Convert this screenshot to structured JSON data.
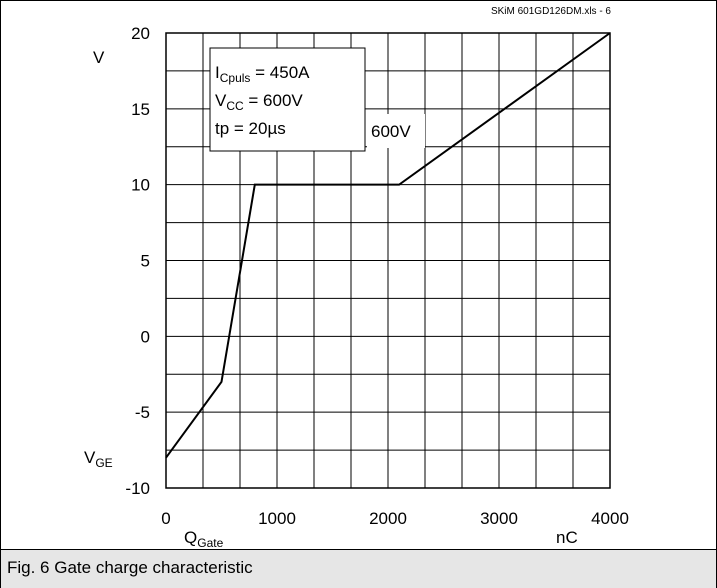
{
  "caption": "Fig. 6 Gate charge characteristic",
  "chart_data": {
    "type": "line",
    "source_label": "SKiM 601GD126DM.xls - 6",
    "x_unit": "nC",
    "y_unit": "V",
    "xlabel_main": "Q",
    "xlabel_sub": "Gate",
    "ylabel_main": "V",
    "ylabel_sub": "GE",
    "xlim": [
      0,
      4000
    ],
    "ylim": [
      -10,
      20
    ],
    "x_ticks": [
      0,
      1000,
      2000,
      3000,
      4000
    ],
    "y_ticks": [
      -10,
      -5,
      0,
      5,
      10,
      15,
      20
    ],
    "x_tick_labels": [
      "0",
      "1000",
      "2000",
      "3000",
      "4000"
    ],
    "y_tick_labels": [
      "-10",
      "-5",
      "0",
      "5",
      "10",
      "15",
      "20"
    ],
    "x_minor_step": 333.33,
    "y_minor_step": 2.5,
    "grid": true,
    "series": [
      {
        "label": "600V",
        "color": "#000000",
        "x": [
          0,
          500,
          800,
          2100,
          4000
        ],
        "y": [
          -8,
          -3,
          10,
          10,
          20
        ]
      }
    ],
    "conditions": [
      {
        "main": "I",
        "sub": "Cpuls",
        "rest": " = 450A"
      },
      {
        "main": "V",
        "sub": "CC",
        "rest": " = 600V"
      },
      {
        "main": "tp = 20µs",
        "sub": "",
        "rest": ""
      }
    ]
  }
}
